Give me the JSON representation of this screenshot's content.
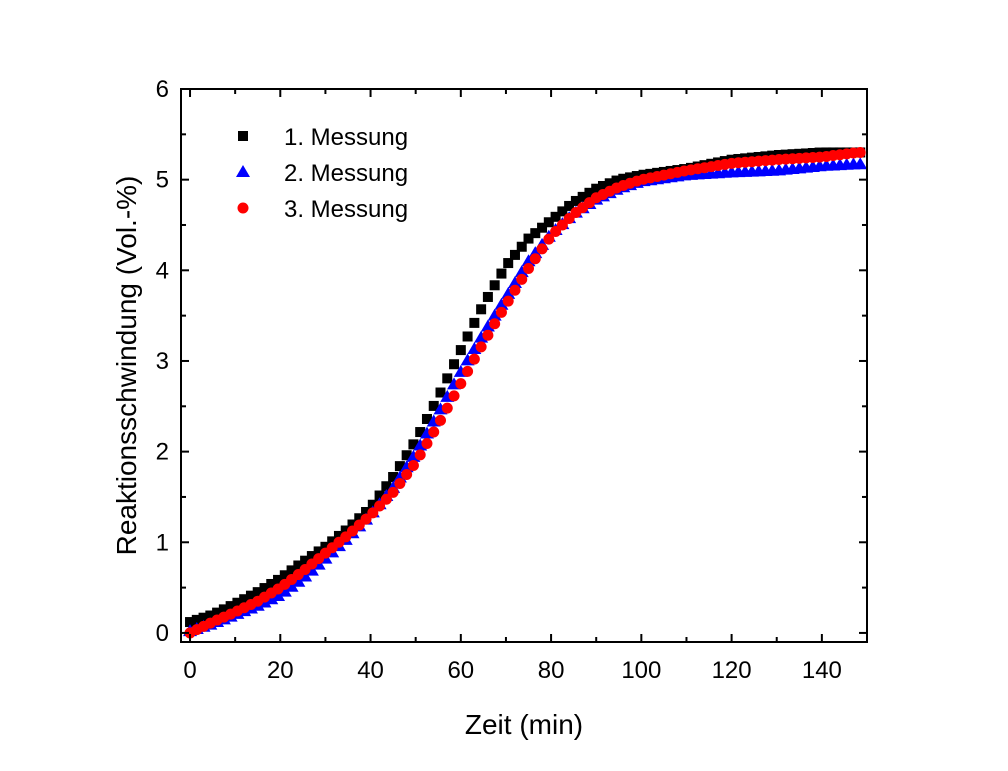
{
  "chart_data": {
    "type": "scatter",
    "title": "",
    "xlabel": "Zeit (min)",
    "ylabel": "Reaktionsschwindung (Vol.-%)",
    "xlim": [
      -2,
      150
    ],
    "ylim": [
      -0.1,
      6
    ],
    "xticks": [
      0,
      20,
      40,
      60,
      80,
      100,
      120,
      140
    ],
    "yticks": [
      0,
      1,
      2,
      3,
      4,
      5,
      6
    ],
    "grid": false,
    "legend_position": "top-left",
    "series": [
      {
        "name": "1. Messung",
        "color": "#000000",
        "marker": "square",
        "anchors": [
          [
            0,
            0.12
          ],
          [
            5,
            0.2
          ],
          [
            10,
            0.32
          ],
          [
            15,
            0.45
          ],
          [
            20,
            0.6
          ],
          [
            25,
            0.78
          ],
          [
            30,
            0.95
          ],
          [
            35,
            1.15
          ],
          [
            40,
            1.38
          ],
          [
            45,
            1.72
          ],
          [
            50,
            2.12
          ],
          [
            55,
            2.6
          ],
          [
            60,
            3.12
          ],
          [
            65,
            3.62
          ],
          [
            70,
            4.05
          ],
          [
            75,
            4.35
          ],
          [
            80,
            4.55
          ],
          [
            85,
            4.75
          ],
          [
            90,
            4.9
          ],
          [
            95,
            5.0
          ],
          [
            100,
            5.05
          ],
          [
            110,
            5.12
          ],
          [
            120,
            5.22
          ],
          [
            130,
            5.27
          ],
          [
            140,
            5.3
          ],
          [
            148,
            5.3
          ]
        ],
        "x": [],
        "y": []
      },
      {
        "name": "2. Messung",
        "color": "#0000ff",
        "marker": "triangle",
        "anchors": [
          [
            0,
            0.02
          ],
          [
            5,
            0.1
          ],
          [
            10,
            0.2
          ],
          [
            15,
            0.3
          ],
          [
            20,
            0.42
          ],
          [
            25,
            0.6
          ],
          [
            30,
            0.82
          ],
          [
            35,
            1.05
          ],
          [
            40,
            1.3
          ],
          [
            45,
            1.6
          ],
          [
            50,
            1.98
          ],
          [
            55,
            2.42
          ],
          [
            60,
            2.88
          ],
          [
            65,
            3.3
          ],
          [
            70,
            3.7
          ],
          [
            75,
            4.1
          ],
          [
            80,
            4.4
          ],
          [
            85,
            4.62
          ],
          [
            90,
            4.78
          ],
          [
            95,
            4.9
          ],
          [
            100,
            4.98
          ],
          [
            110,
            5.05
          ],
          [
            120,
            5.08
          ],
          [
            130,
            5.1
          ],
          [
            140,
            5.15
          ],
          [
            148,
            5.17
          ]
        ],
        "x": [],
        "y": []
      },
      {
        "name": "3. Messung",
        "color": "#ff0000",
        "marker": "circle",
        "anchors": [
          [
            0,
            0.0
          ],
          [
            5,
            0.12
          ],
          [
            10,
            0.23
          ],
          [
            15,
            0.35
          ],
          [
            20,
            0.5
          ],
          [
            25,
            0.68
          ],
          [
            30,
            0.88
          ],
          [
            35,
            1.08
          ],
          [
            40,
            1.3
          ],
          [
            45,
            1.55
          ],
          [
            50,
            1.88
          ],
          [
            55,
            2.3
          ],
          [
            60,
            2.75
          ],
          [
            65,
            3.2
          ],
          [
            70,
            3.62
          ],
          [
            75,
            4.02
          ],
          [
            80,
            4.38
          ],
          [
            85,
            4.62
          ],
          [
            90,
            4.8
          ],
          [
            95,
            4.92
          ],
          [
            100,
            5.0
          ],
          [
            110,
            5.1
          ],
          [
            120,
            5.18
          ],
          [
            130,
            5.22
          ],
          [
            140,
            5.25
          ],
          [
            148,
            5.3
          ]
        ],
        "x": [],
        "y": []
      }
    ]
  }
}
